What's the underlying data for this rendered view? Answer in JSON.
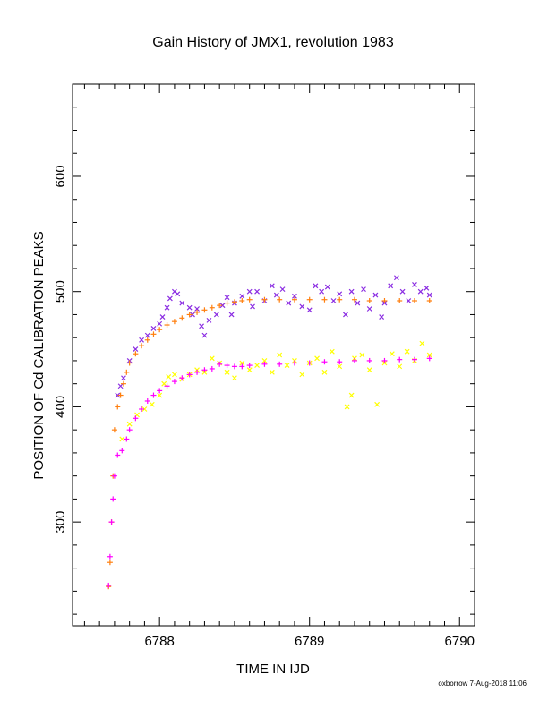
{
  "chart_data": {
    "type": "scatter",
    "title": "Gain History of JMX1, revolution 1983",
    "xlabel": "TIME IN IJD",
    "ylabel": "POSITION OF Cd CALIBRATION PEAKS",
    "xlim": [
      6787.42,
      6790.1
    ],
    "ylim": [
      210,
      680
    ],
    "xticks": [
      6788,
      6789,
      6790
    ],
    "xtick_labels": [
      "6788",
      "6789",
      "6790"
    ],
    "yticks": [
      300,
      400,
      500,
      600
    ],
    "ytick_labels": [
      "300",
      "400",
      "500",
      "600"
    ],
    "grid": false,
    "legend": "none",
    "series": [
      {
        "marker": "x",
        "color": "#8a2be2",
        "points": [
          [
            6787.72,
            410
          ],
          [
            6787.74,
            418
          ],
          [
            6787.76,
            425
          ],
          [
            6787.8,
            440
          ],
          [
            6787.84,
            450
          ],
          [
            6787.88,
            458
          ],
          [
            6787.92,
            462
          ],
          [
            6787.96,
            468
          ],
          [
            6788.0,
            472
          ],
          [
            6788.02,
            478
          ],
          [
            6788.05,
            486
          ],
          [
            6788.07,
            494
          ],
          [
            6788.1,
            500
          ],
          [
            6788.12,
            498
          ],
          [
            6788.15,
            490
          ],
          [
            6788.2,
            486
          ],
          [
            6788.22,
            480
          ],
          [
            6788.25,
            485
          ],
          [
            6788.28,
            470
          ],
          [
            6788.3,
            462
          ],
          [
            6788.33,
            475
          ],
          [
            6788.38,
            480
          ],
          [
            6788.42,
            488
          ],
          [
            6788.45,
            495
          ],
          [
            6788.48,
            480
          ],
          [
            6788.5,
            490
          ],
          [
            6788.55,
            496
          ],
          [
            6788.6,
            500
          ],
          [
            6788.62,
            487
          ],
          [
            6788.65,
            500
          ],
          [
            6788.7,
            492
          ],
          [
            6788.75,
            505
          ],
          [
            6788.78,
            497
          ],
          [
            6788.82,
            502
          ],
          [
            6788.86,
            490
          ],
          [
            6788.9,
            496
          ],
          [
            6788.95,
            487
          ],
          [
            6789.0,
            484
          ],
          [
            6789.04,
            505
          ],
          [
            6789.08,
            500
          ],
          [
            6789.12,
            504
          ],
          [
            6789.16,
            492
          ],
          [
            6789.2,
            498
          ],
          [
            6789.24,
            480
          ],
          [
            6789.28,
            500
          ],
          [
            6789.32,
            490
          ],
          [
            6789.36,
            502
          ],
          [
            6789.4,
            485
          ],
          [
            6789.44,
            497
          ],
          [
            6789.48,
            478
          ],
          [
            6789.5,
            490
          ],
          [
            6789.54,
            505
          ],
          [
            6789.58,
            512
          ],
          [
            6789.62,
            500
          ],
          [
            6789.66,
            492
          ],
          [
            6789.7,
            506
          ],
          [
            6789.74,
            500
          ],
          [
            6789.78,
            503
          ],
          [
            6789.8,
            497
          ]
        ]
      },
      {
        "marker": "+",
        "color": "#ff7f0e",
        "points": [
          [
            6787.66,
            244
          ],
          [
            6787.67,
            265
          ],
          [
            6787.68,
            300
          ],
          [
            6787.69,
            340
          ],
          [
            6787.7,
            380
          ],
          [
            6787.72,
            400
          ],
          [
            6787.74,
            410
          ],
          [
            6787.76,
            420
          ],
          [
            6787.78,
            430
          ],
          [
            6787.8,
            438
          ],
          [
            6787.84,
            446
          ],
          [
            6787.88,
            453
          ],
          [
            6787.92,
            458
          ],
          [
            6787.96,
            463
          ],
          [
            6788.0,
            467
          ],
          [
            6788.05,
            471
          ],
          [
            6788.1,
            474
          ],
          [
            6788.15,
            477
          ],
          [
            6788.2,
            480
          ],
          [
            6788.25,
            482
          ],
          [
            6788.3,
            484
          ],
          [
            6788.35,
            486
          ],
          [
            6788.4,
            488
          ],
          [
            6788.45,
            490
          ],
          [
            6788.5,
            491
          ],
          [
            6788.55,
            492
          ],
          [
            6788.6,
            493
          ],
          [
            6788.7,
            493
          ],
          [
            6788.8,
            493
          ],
          [
            6788.9,
            493
          ],
          [
            6789.0,
            493
          ],
          [
            6789.1,
            493
          ],
          [
            6789.2,
            493
          ],
          [
            6789.3,
            493
          ],
          [
            6789.4,
            492
          ],
          [
            6789.5,
            492
          ],
          [
            6789.6,
            492
          ],
          [
            6789.7,
            492
          ],
          [
            6789.8,
            492
          ]
        ]
      },
      {
        "marker": "x",
        "color": "#ffff00",
        "points": [
          [
            6787.75,
            372
          ],
          [
            6787.8,
            385
          ],
          [
            6787.85,
            393
          ],
          [
            6787.9,
            398
          ],
          [
            6787.95,
            402
          ],
          [
            6788.0,
            410
          ],
          [
            6788.03,
            420
          ],
          [
            6788.06,
            426
          ],
          [
            6788.1,
            428
          ],
          [
            6788.15,
            424
          ],
          [
            6788.2,
            428
          ],
          [
            6788.25,
            432
          ],
          [
            6788.3,
            430
          ],
          [
            6788.35,
            442
          ],
          [
            6788.4,
            438
          ],
          [
            6788.45,
            430
          ],
          [
            6788.5,
            425
          ],
          [
            6788.55,
            438
          ],
          [
            6788.6,
            432
          ],
          [
            6788.65,
            436
          ],
          [
            6788.7,
            440
          ],
          [
            6788.75,
            430
          ],
          [
            6788.8,
            445
          ],
          [
            6788.85,
            436
          ],
          [
            6788.9,
            440
          ],
          [
            6788.95,
            428
          ],
          [
            6789.0,
            438
          ],
          [
            6789.05,
            442
          ],
          [
            6789.1,
            430
          ],
          [
            6789.15,
            448
          ],
          [
            6789.2,
            435
          ],
          [
            6789.25,
            400
          ],
          [
            6789.28,
            410
          ],
          [
            6789.3,
            442
          ],
          [
            6789.35,
            445
          ],
          [
            6789.4,
            432
          ],
          [
            6789.45,
            402
          ],
          [
            6789.5,
            438
          ],
          [
            6789.55,
            446
          ],
          [
            6789.6,
            435
          ],
          [
            6789.65,
            448
          ],
          [
            6789.7,
            440
          ],
          [
            6789.75,
            455
          ],
          [
            6789.8,
            445
          ]
        ]
      },
      {
        "marker": "+",
        "color": "#ff00ff",
        "points": [
          [
            6787.66,
            245
          ],
          [
            6787.67,
            270
          ],
          [
            6787.68,
            300
          ],
          [
            6787.69,
            320
          ],
          [
            6787.7,
            340
          ],
          [
            6787.72,
            358
          ],
          [
            6787.75,
            362
          ],
          [
            6787.78,
            372
          ],
          [
            6787.8,
            380
          ],
          [
            6787.84,
            390
          ],
          [
            6787.88,
            398
          ],
          [
            6787.92,
            405
          ],
          [
            6787.96,
            410
          ],
          [
            6788.0,
            414
          ],
          [
            6788.05,
            418
          ],
          [
            6788.1,
            422
          ],
          [
            6788.15,
            425
          ],
          [
            6788.2,
            428
          ],
          [
            6788.25,
            430
          ],
          [
            6788.3,
            432
          ],
          [
            6788.35,
            433
          ],
          [
            6788.4,
            437
          ],
          [
            6788.45,
            436
          ],
          [
            6788.5,
            435
          ],
          [
            6788.55,
            435
          ],
          [
            6788.6,
            436
          ],
          [
            6788.7,
            437
          ],
          [
            6788.8,
            437
          ],
          [
            6788.9,
            438
          ],
          [
            6789.0,
            438
          ],
          [
            6789.1,
            439
          ],
          [
            6789.2,
            439
          ],
          [
            6789.3,
            440
          ],
          [
            6789.4,
            440
          ],
          [
            6789.5,
            440
          ],
          [
            6789.6,
            441
          ],
          [
            6789.7,
            441
          ],
          [
            6789.8,
            442
          ]
        ]
      }
    ]
  },
  "footer": {
    "credit": "oxborrow  7-Aug-2018 11:06"
  }
}
